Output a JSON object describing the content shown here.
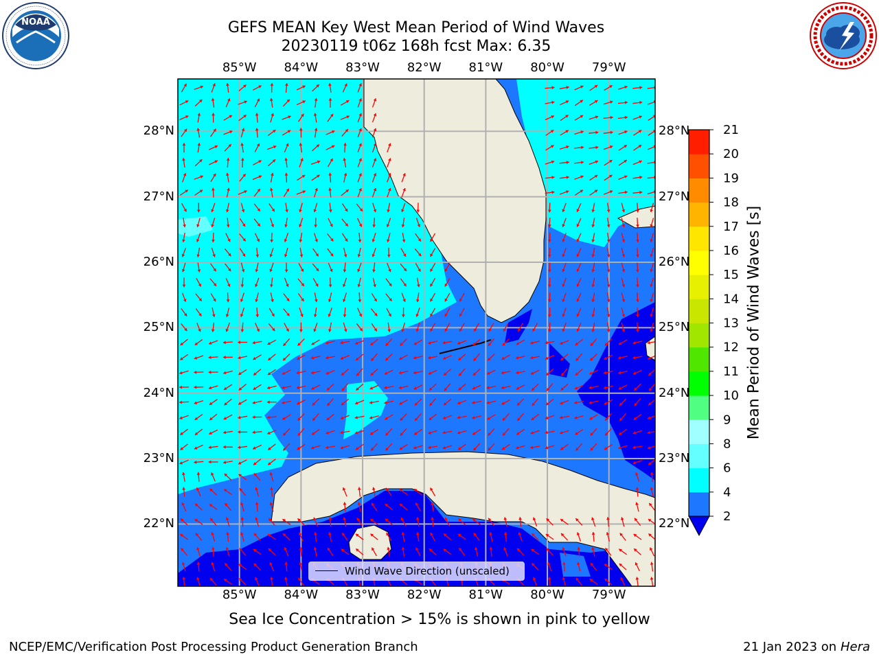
{
  "header": {
    "title_line1": "GEFS MEAN Key West Mean Period of Wind Waves",
    "title_line2": "20230119 t06z 168h fcst   Max: 6.35"
  },
  "logos": {
    "noaa": {
      "text": "NOAA",
      "ring_text": "NATIONAL OCEANIC AND ATMOSPHERIC ADMINISTRATION · U.S. DEPARTMENT OF COMMERCE"
    },
    "nws": {
      "ring_text": "NATIONAL WEATHER SERVICE"
    }
  },
  "map": {
    "lon_ticks": [
      "85°W",
      "84°W",
      "83°W",
      "82°W",
      "81°W",
      "80°W",
      "79°W"
    ],
    "lat_ticks": [
      "28°N",
      "27°N",
      "26°N",
      "25°N",
      "24°N",
      "23°N",
      "22°N"
    ],
    "lon_values": [
      -85,
      -84,
      -83,
      -82,
      -81,
      -80,
      -79
    ],
    "lat_values": [
      28,
      27,
      26,
      25,
      24,
      23,
      22
    ],
    "extent": {
      "lon_min": -86.0,
      "lon_max": -78.25,
      "lat_min": 21.05,
      "lat_max": 28.8
    },
    "legend_label": "Wind Wave Direction (unscaled)",
    "colors": {
      "land": "#eeecdc",
      "band_2_4": "#1e78ff",
      "band_below_2": "#0000ee",
      "band_4_6": "#00ffff",
      "grid": "#b0b0b0",
      "arrow": "#ff0000"
    }
  },
  "colorbar": {
    "label": "Mean Period of Wind Waves [s]",
    "ticks": [
      "2",
      "4",
      "6",
      "8",
      "9",
      "10",
      "11",
      "12",
      "13",
      "14",
      "15",
      "16",
      "17",
      "18",
      "19",
      "20",
      "21"
    ],
    "segment_colors": [
      "#1e78ff",
      "#00ffff",
      "#64ffff",
      "#a0ffff",
      "#50ff82",
      "#00ff00",
      "#50e600",
      "#a0e600",
      "#c8e600",
      "#e6f000",
      "#ffff00",
      "#ffe600",
      "#ffb400",
      "#ff8c00",
      "#ff5000",
      "#ff1e00"
    ],
    "extend_color": "#0000ee"
  },
  "notes": {
    "ice": "Sea Ice Concentration > 15% is shown in pink to yellow"
  },
  "footer": {
    "left": "NCEP/EMC/Verification Post Processing Product Generation Branch",
    "date": "21 Jan 2023 on",
    "machine": "Hera"
  }
}
